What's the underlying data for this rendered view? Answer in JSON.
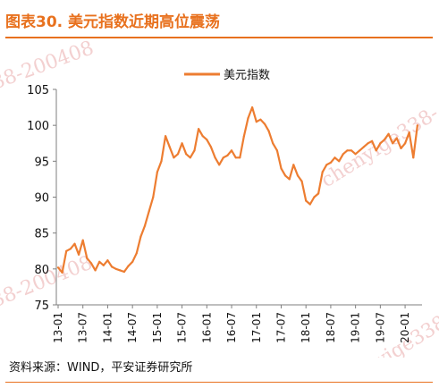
{
  "figure": {
    "title": "图表30.  美元指数近期高位震荡",
    "source": "资料来源：WIND，平安证券研究所",
    "watermarks": [
      "38-200408",
      "chenyige338-",
      "chenyige338-",
      "38-200408"
    ]
  },
  "chart_data": {
    "type": "line",
    "title": "",
    "xlabel": "",
    "ylabel": "",
    "ylim": [
      75,
      105
    ],
    "yticks": [
      75,
      80,
      85,
      90,
      95,
      100,
      105
    ],
    "xticks": [
      "13-01",
      "13-07",
      "14-01",
      "14-07",
      "15-01",
      "15-07",
      "16-01",
      "16-07",
      "17-01",
      "17-07",
      "18-01",
      "18-07",
      "19-01",
      "19-07",
      "20-01"
    ],
    "legend": "top-center",
    "grid": false,
    "colors": {
      "line": "#ed7d31",
      "title": "#e8711e",
      "axis": "#7f7f7f"
    },
    "series": [
      {
        "name": "美元指数",
        "x": [
          "13-01",
          "13-02",
          "13-03",
          "13-04",
          "13-05",
          "13-06",
          "13-07",
          "13-08",
          "13-09",
          "13-10",
          "13-11",
          "13-12",
          "14-01",
          "14-02",
          "14-03",
          "14-04",
          "14-05",
          "14-06",
          "14-07",
          "14-08",
          "14-09",
          "14-10",
          "14-11",
          "14-12",
          "15-01",
          "15-02",
          "15-03",
          "15-04",
          "15-05",
          "15-06",
          "15-07",
          "15-08",
          "15-09",
          "15-10",
          "15-11",
          "15-12",
          "16-01",
          "16-02",
          "16-03",
          "16-04",
          "16-05",
          "16-06",
          "16-07",
          "16-08",
          "16-09",
          "16-10",
          "16-11",
          "16-12",
          "17-01",
          "17-02",
          "17-03",
          "17-04",
          "17-05",
          "17-06",
          "17-07",
          "17-08",
          "17-09",
          "17-10",
          "17-11",
          "17-12",
          "18-01",
          "18-02",
          "18-03",
          "18-04",
          "18-05",
          "18-06",
          "18-07",
          "18-08",
          "18-09",
          "18-10",
          "18-11",
          "18-12",
          "19-01",
          "19-02",
          "19-03",
          "19-04",
          "19-05",
          "19-06",
          "19-07",
          "19-08",
          "19-09",
          "19-10",
          "19-11",
          "19-12",
          "20-01",
          "20-02",
          "20-03",
          "20-04"
        ],
        "values": [
          80.2,
          79.5,
          82.5,
          82.8,
          83.5,
          82.0,
          84.0,
          81.5,
          80.8,
          79.8,
          81.0,
          80.5,
          81.2,
          80.3,
          80.0,
          79.8,
          79.6,
          80.4,
          81.0,
          82.2,
          84.5,
          86.0,
          88.0,
          90.0,
          93.5,
          95.0,
          98.5,
          97.0,
          95.5,
          96.0,
          97.5,
          96.0,
          95.5,
          96.5,
          99.5,
          98.5,
          98.0,
          97.0,
          95.5,
          94.5,
          95.5,
          95.8,
          96.5,
          95.5,
          95.5,
          98.5,
          101.0,
          102.5,
          100.5,
          100.8,
          100.2,
          99.2,
          97.5,
          96.5,
          94.0,
          93.0,
          92.5,
          94.5,
          93.0,
          92.2,
          89.5,
          89.0,
          90.0,
          90.5,
          93.5,
          94.5,
          94.8,
          95.5,
          95.0,
          96.0,
          96.5,
          96.5,
          96.0,
          96.5,
          97.0,
          97.5,
          97.8,
          96.5,
          97.5,
          98.0,
          98.8,
          97.5,
          98.2,
          96.8,
          97.5,
          99.0,
          95.5,
          100.0
        ]
      }
    ]
  }
}
